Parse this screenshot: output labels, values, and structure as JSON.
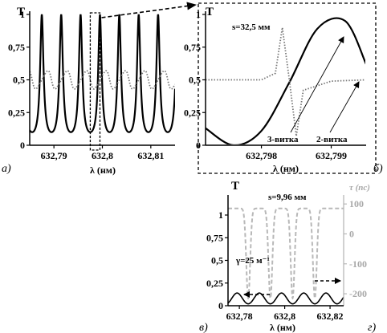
{
  "panel_labels": [
    "а)",
    "б)",
    "в)",
    "г)"
  ],
  "chart_data": [
    {
      "id": "a",
      "type": "line",
      "ylabel": "T",
      "xlabel": "λ (нм)",
      "xlim": [
        632.785,
        632.815
      ],
      "ylim": [
        0,
        1
      ],
      "x_ticks": [
        "632,79",
        "632,8",
        "632,81"
      ],
      "x_tick_values": [
        632.79,
        632.8,
        632.81
      ],
      "y_ticks": [
        "0",
        "0,25",
        "0,5",
        "0,75",
        "1"
      ],
      "y_tick_values": [
        0,
        0.25,
        0.5,
        0.75,
        1
      ],
      "series": [
        {
          "style": "solid",
          "shape": "periodic transmission, near 0 to 1",
          "period_nm": 0.004,
          "max_x": [
            632.7875,
            632.7915,
            632.7955,
            632.7995,
            632.8035,
            632.8075,
            632.8115
          ],
          "min_x": [
            632.7895,
            632.7935,
            632.7975,
            632.8015,
            632.8055,
            632.8095
          ]
        },
        {
          "style": "dotted",
          "shape": "periodic dispersive curve, about 0.5",
          "center": 0.5,
          "range": [
            0.4,
            0.65
          ]
        }
      ],
      "zoom_box_x": [
        632.7975,
        632.7995
      ]
    },
    {
      "id": "b",
      "type": "line",
      "ylabel": "T",
      "xlabel": "λ (нм)",
      "xlim": [
        632.7972,
        632.7995
      ],
      "ylim": [
        0,
        1
      ],
      "x_ticks": [
        "632,798",
        "632,799"
      ],
      "x_tick_values": [
        632.798,
        632.799
      ],
      "y_ticks": [
        "0",
        "0,25",
        "0,5",
        "0,75",
        "1"
      ],
      "y_tick_values": [
        0,
        0.25,
        0.5,
        0.75,
        1
      ],
      "annotations": [
        "s=32,5 мм",
        "3-витка",
        "2-витка"
      ],
      "series": [
        {
          "style": "solid",
          "x": [
            632.7972,
            632.7976,
            632.798,
            632.7984,
            632.7988,
            632.7992,
            632.7995
          ],
          "y": [
            0.13,
            0.0,
            0.11,
            0.48,
            0.89,
            0.95,
            0.62
          ]
        },
        {
          "style": "dotted",
          "x": [
            632.7972,
            632.798,
            632.7982,
            632.7983,
            632.7984,
            632.7985,
            632.7986,
            632.799,
            632.7995
          ],
          "y": [
            0.5,
            0.5,
            0.55,
            0.9,
            0.5,
            0.07,
            0.42,
            0.49,
            0.5
          ]
        }
      ]
    },
    {
      "id": "c",
      "type": "line",
      "ylabel": "T",
      "y2label": "τ (пс)",
      "xlabel": "λ (нм)",
      "xlim": [
        632.775,
        632.826
      ],
      "ylim": [
        0,
        1
      ],
      "y2lim": [
        -240,
        130
      ],
      "x_ticks": [
        "632,78",
        "632,8",
        "632,82"
      ],
      "x_tick_values": [
        632.78,
        632.8,
        632.82
      ],
      "y_ticks": [
        "0",
        "0,25",
        "0,5",
        "0,75",
        "1"
      ],
      "y_tick_values": [
        0,
        0.25,
        0.5,
        0.75,
        1
      ],
      "y2_ticks": [
        "100",
        "0",
        "-100",
        "-200"
      ],
      "y2_tick_values": [
        100,
        0,
        -100,
        -200
      ],
      "annotations": [
        "s=9,96 мм",
        "γ=25 м⁻¹"
      ],
      "series": [
        {
          "style": "solid",
          "axis": "left",
          "shape": "periodic transmission, about 0 to 0.12",
          "period_nm": 0.0098,
          "max_x": [
            632.779,
            632.7888,
            632.7986,
            632.8084,
            632.8182
          ],
          "min_x": [
            632.7839,
            632.7937,
            632.8035,
            632.8133
          ]
        },
        {
          "style": "dashed",
          "color": "#b8b8b8",
          "axis": "right",
          "shape": "group delay dips",
          "dip_x": [
            632.7839,
            632.7937,
            632.8035,
            632.8133
          ],
          "baseline": 85,
          "dip_min": -215
        }
      ]
    }
  ]
}
